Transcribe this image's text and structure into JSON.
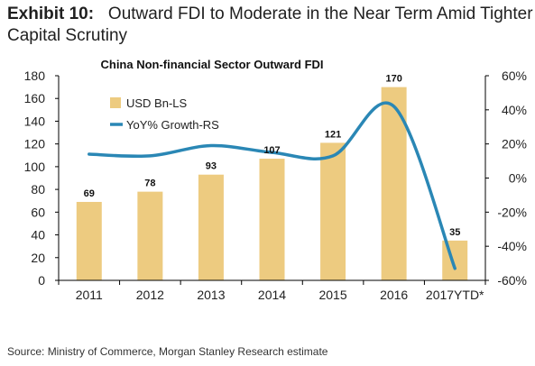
{
  "header": {
    "exhibit_label": "Exhibit 10:",
    "title_line1": "Outward FDI to Moderate in the Near Term Amid Tighter",
    "title_line2": "Capital Scrutiny"
  },
  "source_note": "Source: Ministry of Commerce, Morgan Stanley Research estimate",
  "colors": {
    "bar": "#EDCB80",
    "line": "#2A87B5",
    "axis": "#000000",
    "text": "#222222"
  },
  "chart_data": {
    "type": "bar",
    "title": "China Non-financial Sector Outward FDI",
    "categories": [
      "2011",
      "2012",
      "2013",
      "2014",
      "2015",
      "2016",
      "2017YTD*"
    ],
    "series": [
      {
        "name": "USD Bn-LS",
        "type": "bar",
        "axis": "left",
        "values": [
          69,
          78,
          93,
          107,
          121,
          170,
          35
        ]
      },
      {
        "name": "YoY% Growth-RS",
        "type": "line",
        "axis": "right",
        "smooth": true,
        "values": [
          14,
          13,
          19,
          15,
          13,
          42,
          -53
        ]
      }
    ],
    "y_left": {
      "ylim": [
        0,
        180
      ],
      "ticks": [
        0,
        20,
        40,
        60,
        80,
        100,
        120,
        140,
        160,
        180
      ],
      "tick_labels": [
        "0",
        "20",
        "40",
        "60",
        "80",
        "100",
        "120",
        "140",
        "160",
        "180"
      ]
    },
    "y_right": {
      "ylim": [
        -60,
        60
      ],
      "ticks": [
        -60,
        -40,
        -20,
        0,
        20,
        40,
        60
      ],
      "tick_labels": [
        "-60%",
        "-40%",
        "-20%",
        "0%",
        "20%",
        "40%",
        "60%"
      ]
    },
    "data_labels": [
      "69",
      "78",
      "93",
      "107",
      "121",
      "170",
      "35"
    ],
    "legend_position": "top-left",
    "grid": false
  }
}
